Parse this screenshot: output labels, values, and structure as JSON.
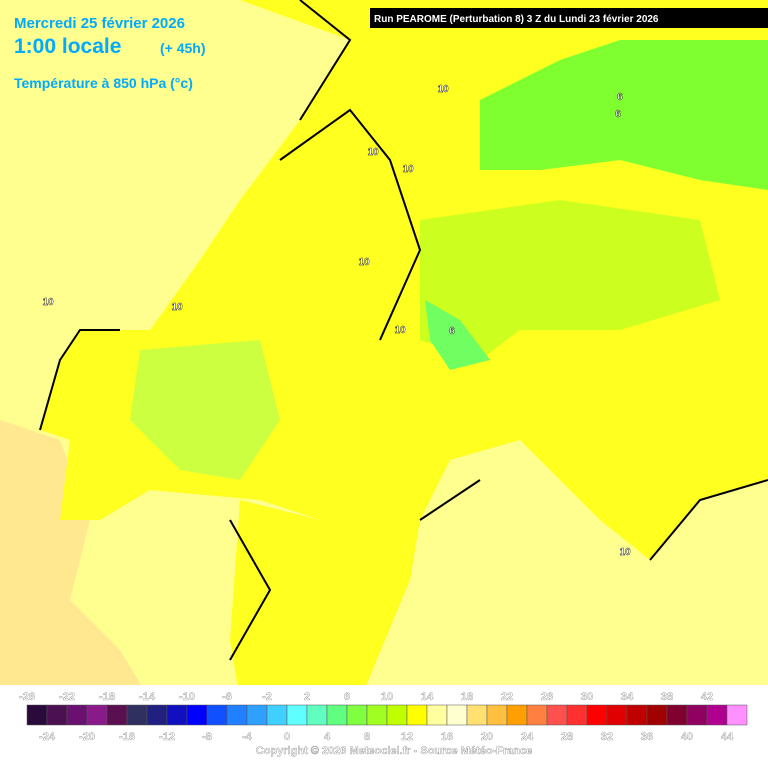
{
  "header": {
    "date": "Mercredi 25 février 2026",
    "time": "1:00 locale",
    "lead": "(+ 45h)",
    "variable": "Température à 850 hPa (°c)",
    "run": "Run PEAROME (Perturbation 8) 3 Z du Lundi 23 février 2026"
  },
  "map": {
    "contour_labels": [
      "10",
      "10",
      "10",
      "10",
      "10",
      "10",
      "10",
      "6",
      "6",
      "6",
      "10"
    ]
  },
  "legend": {
    "top_labels": [
      -26,
      -22,
      -18,
      -14,
      -10,
      -6,
      -2,
      2,
      6,
      10,
      14,
      18,
      22,
      26,
      30,
      34,
      38,
      42
    ],
    "bottom_labels": [
      -24,
      -20,
      -16,
      -12,
      -8,
      -4,
      0,
      4,
      8,
      12,
      16,
      20,
      24,
      28,
      32,
      36,
      40,
      44
    ],
    "colors": [
      "#2a0a3a",
      "#4a1050",
      "#6a1070",
      "#8a1a8a",
      "#5a1050",
      "#303060",
      "#202080",
      "#1010c0",
      "#0000ff",
      "#1050ff",
      "#2080ff",
      "#30a0ff",
      "#40d0ff",
      "#60ffff",
      "#60ffc0",
      "#60ff80",
      "#80ff40",
      "#a0ff20",
      "#c0ff00",
      "#ffff00",
      "#ffffa0",
      "#ffffd0",
      "#ffe070",
      "#ffc040",
      "#ffa000",
      "#ff8040",
      "#ff5050",
      "#ff3030",
      "#ff0000",
      "#e00000",
      "#c00000",
      "#a00000",
      "#800030",
      "#900060",
      "#b00090",
      "#ff90ff"
    ],
    "copyright": "Copyright © 2026 Meteociel.fr - Source Météo-France"
  }
}
